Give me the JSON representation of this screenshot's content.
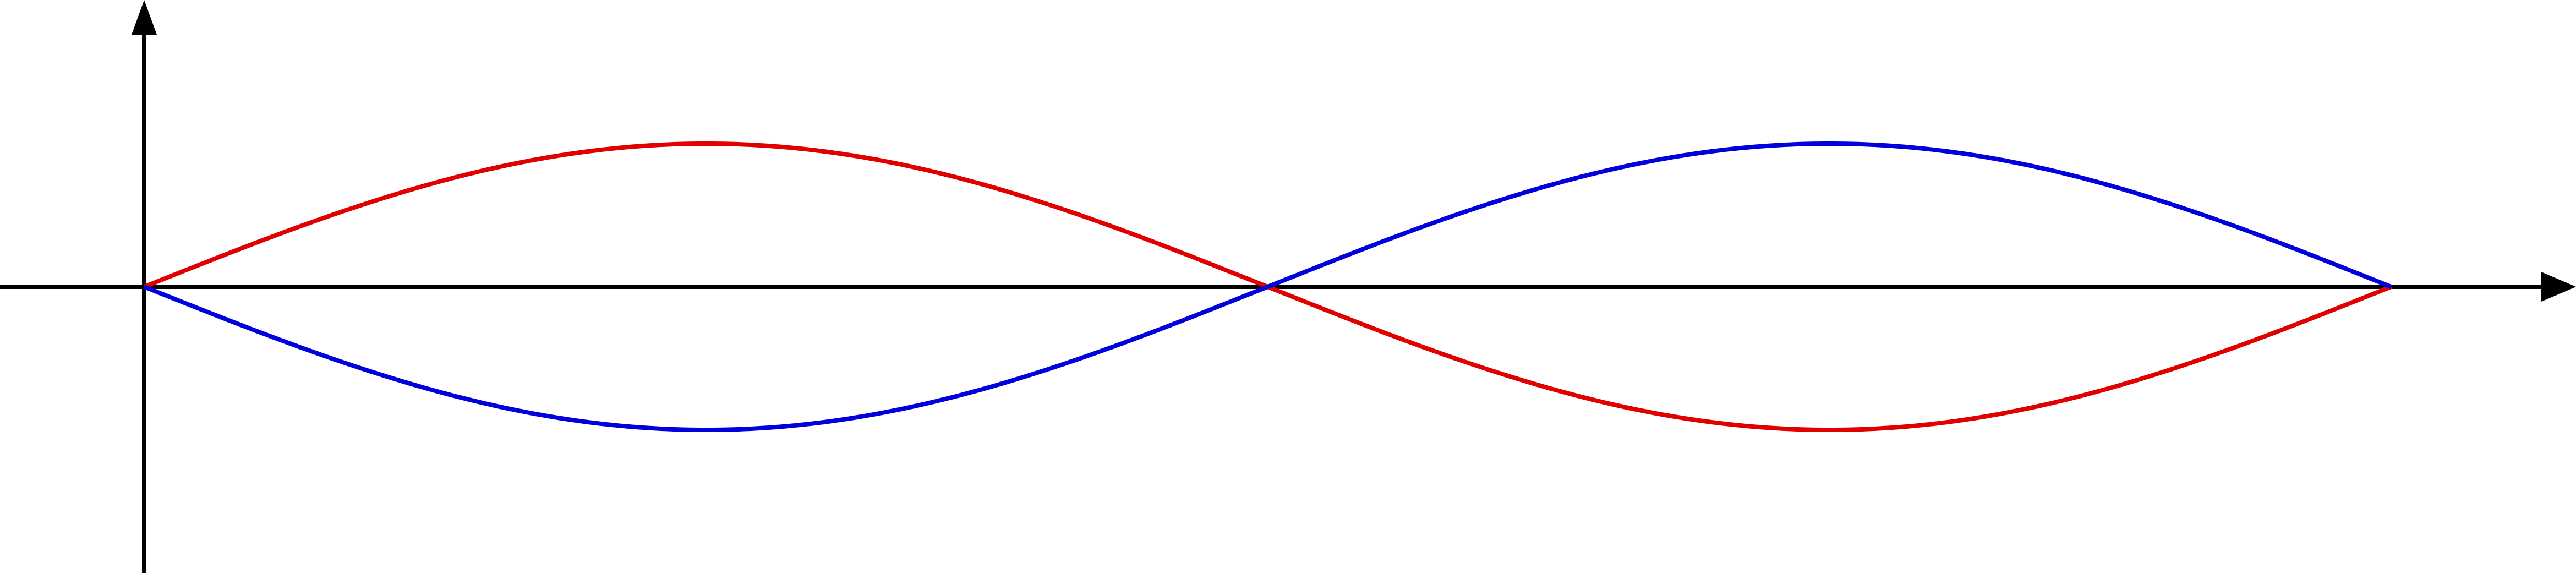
{
  "diagram": {
    "type": "standing-wave",
    "curves": [
      {
        "name": "upper-phase-wave",
        "color": "#e00000",
        "phase": 1,
        "half_wavelengths": 2
      },
      {
        "name": "lower-phase-wave",
        "color": "#0000dd",
        "phase": -1,
        "half_wavelengths": 2
      }
    ],
    "axes": {
      "color": "#000000",
      "x_arrow": true,
      "y_arrow": true
    }
  }
}
